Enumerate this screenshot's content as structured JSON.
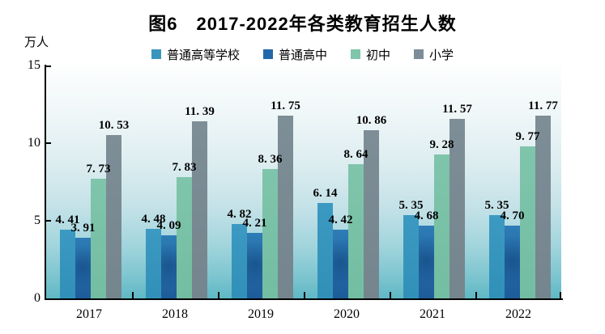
{
  "chart": {
    "title": "图6　2017-2022年各类教育招生人数",
    "unit_label": "万人"
  },
  "chart_data": {
    "type": "bar",
    "title": "图6　2017-2022年各类教育招生人数",
    "ylabel_unit": "万人",
    "categories": [
      "2017",
      "2018",
      "2019",
      "2020",
      "2021",
      "2022"
    ],
    "series": [
      {
        "name": "普通高等学校",
        "color": "#3A95BD",
        "values": [
          4.41,
          4.48,
          4.82,
          6.14,
          5.35,
          5.35
        ]
      },
      {
        "name": "普通高中",
        "color": "#2267A9",
        "values": [
          3.91,
          4.09,
          4.21,
          4.42,
          4.68,
          4.7
        ]
      },
      {
        "name": "初中",
        "color": "#7EC5AB",
        "values": [
          7.73,
          7.83,
          8.36,
          8.64,
          9.28,
          9.77
        ]
      },
      {
        "name": "小学",
        "color": "#7C8D97",
        "values": [
          10.53,
          11.39,
          11.75,
          10.86,
          11.57,
          11.77
        ]
      }
    ],
    "ylim": [
      0,
      15
    ],
    "yticks": [
      0,
      5,
      10,
      15
    ],
    "grid": false,
    "legend_position": "top-center",
    "value_labels_shown": true,
    "axis_color": "#000000",
    "plot_bg_gradient_top": "#FDFEFE",
    "plot_bg_gradient_bottom": "#5FB8C5",
    "title_color": "#000000"
  }
}
